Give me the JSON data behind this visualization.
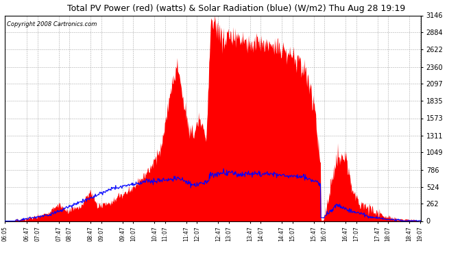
{
  "title": "Total PV Power (red) (watts) & Solar Radiation (blue) (W/m2) Thu Aug 28 19:19",
  "copyright": "Copyright 2008 Cartronics.com",
  "y_max": 3146.0,
  "y_min": 0.0,
  "y_ticks": [
    0.0,
    262.2,
    524.3,
    786.5,
    1048.7,
    1310.8,
    1573.0,
    1835.2,
    2097.4,
    2359.5,
    2621.7,
    2883.9,
    3146.0
  ],
  "x_labels": [
    "06:05",
    "06:47",
    "07:07",
    "07:47",
    "08:07",
    "08:47",
    "09:07",
    "09:47",
    "10:07",
    "10:47",
    "11:07",
    "11:47",
    "12:07",
    "12:47",
    "13:07",
    "13:47",
    "14:07",
    "14:47",
    "15:07",
    "15:47",
    "16:07",
    "16:47",
    "17:07",
    "17:47",
    "18:07",
    "18:47",
    "19:07"
  ],
  "x_tick_hours": [
    6.083,
    6.783,
    7.117,
    7.783,
    8.117,
    8.783,
    9.117,
    9.783,
    10.117,
    10.783,
    11.117,
    11.783,
    12.117,
    12.783,
    13.117,
    13.783,
    14.117,
    14.783,
    15.117,
    15.783,
    16.117,
    16.783,
    17.117,
    17.783,
    18.117,
    18.783,
    19.117
  ],
  "background_color": "#ffffff",
  "red_fill_color": "#ff0000",
  "blue_line_color": "#0000ff",
  "grid_color": "#aaaaaa",
  "title_fontsize": 9,
  "copyright_fontsize": 6,
  "x_start": 6.083,
  "x_end": 19.15
}
